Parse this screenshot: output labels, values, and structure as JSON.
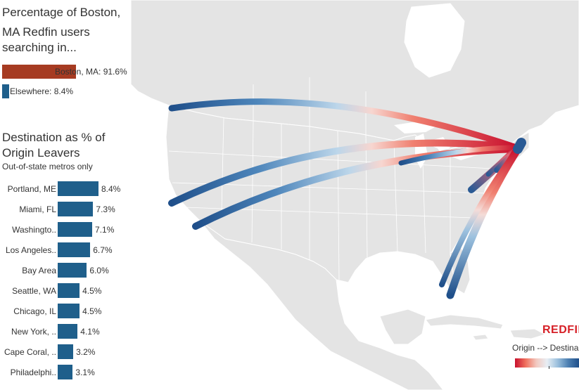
{
  "share": {
    "title_line1": "Percentage of Boston,",
    "title_line2": "MA Redfin users",
    "title_line3": "searching in...",
    "boston": {
      "label": "Boston, MA: 91.6%",
      "value": 91.6,
      "color": "#a63b22"
    },
    "elsewhere": {
      "label": "Elsewhere: 8.4%",
      "value": 8.4,
      "color": "#1f5f8b"
    }
  },
  "destinations": {
    "title_line1": "Destination as % of",
    "title_line2": "Origin Leavers",
    "subtitle": "Out-of-state metros only"
  },
  "chart_data": {
    "type": "bar",
    "orientation": "horizontal",
    "categories": [
      "Portland, ME",
      "Miami, FL",
      "Washingto..",
      "Los Angeles..",
      "Bay Area",
      "Seattle, WA",
      "Chicago, IL",
      "New York, ..",
      "Cape Coral, ..",
      "Philadelphi.."
    ],
    "values": [
      8.4,
      7.3,
      7.1,
      6.7,
      6.0,
      4.5,
      4.5,
      4.1,
      3.2,
      3.1
    ],
    "value_labels": [
      "8.4%",
      "7.3%",
      "7.1%",
      "6.7%",
      "6.0%",
      "4.5%",
      "4.5%",
      "4.1%",
      "3.2%",
      "3.1%"
    ],
    "bar_color": "#1f5f8b",
    "title": "Destination as % of Origin Leavers",
    "subtitle": "Out-of-state metros only",
    "xlabel": "",
    "ylabel": ""
  },
  "map": {
    "origin": "Boston, MA",
    "flows": [
      "Seattle, WA",
      "Bay Area",
      "Los Angeles..",
      "Chicago, IL",
      "Washingto..",
      "New York, ..",
      "Philadelphi..",
      "Miami, FL",
      "Cape Coral, ..",
      "Portland, ME"
    ],
    "land_color": "#e4e4e4",
    "water_color": "#ffffff",
    "border_color": "#ffffff"
  },
  "legend": {
    "brand": "REDFIN",
    "label": "Origin --> Destina",
    "origin_color": "#c8102e",
    "destination_color": "#1f4f8a"
  }
}
